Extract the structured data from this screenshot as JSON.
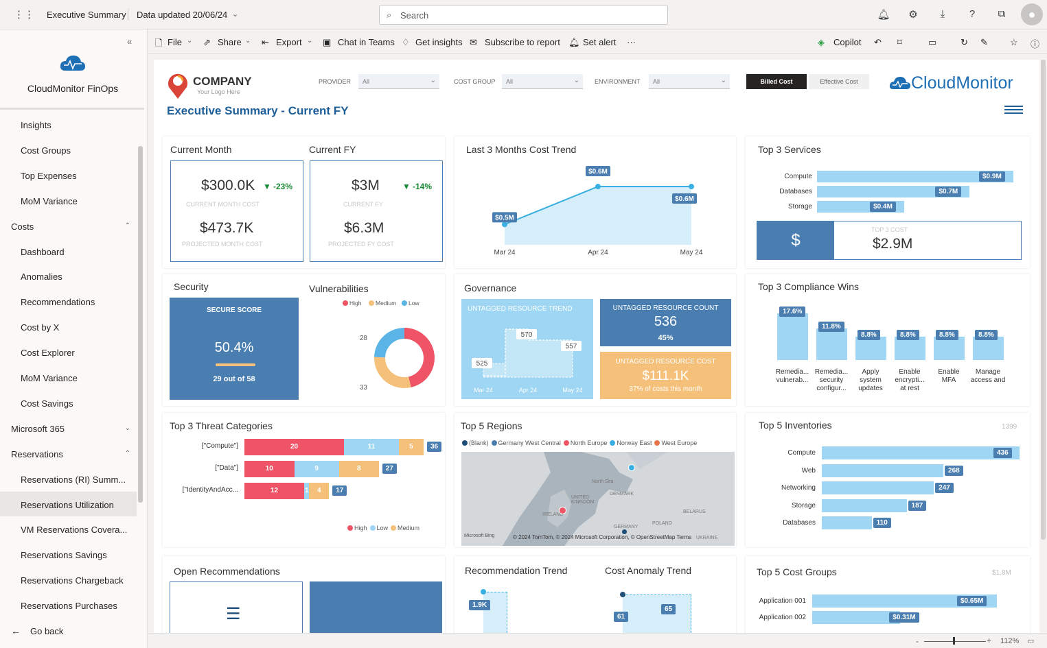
{
  "topbar": {
    "report_title": "Executive Summary",
    "data_updated": "Data updated 20/06/24",
    "search_placeholder": "Search"
  },
  "sidebar": {
    "app_name": "CloudMonitor FinOps",
    "items": [
      {
        "label": "Insights",
        "type": "sub"
      },
      {
        "label": "Cost Groups",
        "type": "sub"
      },
      {
        "label": "Top Expenses",
        "type": "sub"
      },
      {
        "label": "MoM Variance",
        "type": "sub"
      },
      {
        "label": "Costs",
        "type": "section"
      },
      {
        "label": "Dashboard",
        "type": "sub"
      },
      {
        "label": "Anomalies",
        "type": "sub"
      },
      {
        "label": "Recommendations",
        "type": "sub"
      },
      {
        "label": "Cost by X",
        "type": "sub"
      },
      {
        "label": "Cost Explorer",
        "type": "sub"
      },
      {
        "label": "MoM Variance",
        "type": "sub"
      },
      {
        "label": "Cost Savings",
        "type": "sub"
      },
      {
        "label": "Microsoft 365",
        "type": "section"
      },
      {
        "label": "Reservations",
        "type": "section"
      },
      {
        "label": "Reservations (RI) Summ...",
        "type": "sub"
      },
      {
        "label": "Reservations Utilization",
        "type": "sub",
        "selected": true
      },
      {
        "label": "VM Reservations Covera...",
        "type": "sub"
      },
      {
        "label": "Reservations Savings",
        "type": "sub"
      },
      {
        "label": "Reservations Chargeback",
        "type": "sub"
      },
      {
        "label": "Reservations Purchases",
        "type": "sub"
      }
    ],
    "go_back": "Go back"
  },
  "toolbar": {
    "file": "File",
    "share": "Share",
    "export": "Export",
    "chat": "Chat in Teams",
    "insights": "Get insights",
    "subscribe": "Subscribe to report",
    "alert": "Set alert",
    "more": "···",
    "copilot": "Copilot"
  },
  "report": {
    "company": "COMPANY",
    "logo_sub": "Your Logo Here",
    "title": "Executive Summary - Current FY",
    "brand": "CloudMonitor",
    "filters": {
      "provider_label": "PROVIDER",
      "provider_value": "All",
      "costgroup_label": "COST GROUP",
      "costgroup_value": "All",
      "env_label": "ENVIRONMENT",
      "env_value": "All"
    },
    "toggle": {
      "billed": "Billed Cost",
      "effective": "Effective Cost"
    },
    "current_month": {
      "title": "Current Month",
      "value": "$300.0K",
      "delta": "-23%",
      "label": "CURRENT MONTH COST",
      "projected": "$473.7K",
      "projected_label": "PROJECTED MONTH COST"
    },
    "current_fy": {
      "title": "Current FY",
      "value": "$3M",
      "delta": "-14%",
      "label": "CURRENT FY",
      "projected": "$6.3M",
      "projected_label": "PROJECTED FY COST"
    },
    "trend": {
      "title": "Last 3 Months Cost Trend"
    },
    "top_services": {
      "title": "Top 3 Services",
      "total_label": "TOP 3 COST",
      "total": "$2.9M",
      "currency": "$"
    },
    "security": {
      "title": "Security",
      "score_label": "SECURE SCORE",
      "score": "50.4%",
      "progress": 0.504,
      "detail": "29 out of 58"
    },
    "vulns": {
      "title": "Vulnerabilities"
    },
    "governance": {
      "title": "Governance",
      "trend_label": "UNTAGGED RESOURCE TREND",
      "count_label": "UNTAGGED RESOURCE COUNT",
      "count": "536",
      "count_pct": "45%",
      "cost_label": "UNTAGGED RESOURCE COST",
      "cost": "$111.1K",
      "cost_sub": "37% of costs this month"
    },
    "compliance": {
      "title": "Top 3 Compliance Wins"
    },
    "threats": {
      "title": "Top 3 Threat Categories"
    },
    "regions": {
      "title": "Top 5 Regions",
      "legend": [
        {
          "name": "(Blank)",
          "color": "#1f4e79"
        },
        {
          "name": "Germany West Central",
          "color": "#4a7eb0"
        },
        {
          "name": "North Europe",
          "color": "#ef5466"
        },
        {
          "name": "Norway East",
          "color": "#3ab0e2"
        },
        {
          "name": "West Europe",
          "color": "#e8754a"
        }
      ],
      "map_labels": [
        "North Sea",
        "DENMARK",
        "UNITED KINGDOM",
        "IRELAND",
        "BELARUS",
        "POLAND",
        "GERMANY",
        "UKRAINE"
      ],
      "credit": "© 2024 TomTom, © 2024 Microsoft Corporation, © OpenStreetMap  Terms",
      "bing": "Microsoft Bing"
    },
    "inventories": {
      "title": "Top 5 Inventories",
      "max": "1399"
    },
    "open_recs": {
      "title": "Open Recommendations"
    },
    "rec_trend": {
      "title": "Recommendation Trend",
      "value": "1.9K"
    },
    "anomaly_trend": {
      "title": "Cost Anomaly Trend",
      "v1": "61",
      "v2": "65"
    },
    "cost_groups": {
      "title": "Top 5 Cost Groups",
      "max": "$1.8M"
    }
  },
  "chart_data": [
    {
      "type": "line",
      "title": "Last 3 Months Cost Trend",
      "categories": [
        "Mar 24",
        "Apr 24",
        "May 24"
      ],
      "values": [
        0.5,
        0.6,
        0.6
      ],
      "labels": [
        "$0.5M",
        "$0.6M",
        "$0.6M"
      ]
    },
    {
      "type": "bar",
      "title": "Top 3 Services",
      "categories": [
        "Compute",
        "Databases",
        "Storage"
      ],
      "values": [
        0.9,
        0.7,
        0.4
      ],
      "labels": [
        "$0.9M",
        "$0.7M",
        "$0.4M"
      ]
    },
    {
      "type": "pie",
      "title": "Vulnerabilities",
      "categories": [
        "High",
        "Medium",
        "Low"
      ],
      "values": [
        53,
        33,
        28
      ],
      "colors": [
        "#ef5466",
        "#f5c07a",
        "#5ab4e5"
      ]
    },
    {
      "type": "line",
      "title": "UNTAGGED RESOURCE TREND",
      "categories": [
        "Mar 24",
        "Apr 24",
        "May 24"
      ],
      "values": [
        525,
        570,
        557
      ]
    },
    {
      "type": "bar",
      "title": "Top 3 Compliance Wins",
      "categories": [
        "Remedia... vulnerab...",
        "Remedia... security configur...",
        "Apply system updates",
        "Enable encrypti... at rest",
        "Enable MFA",
        "Manage access and"
      ],
      "values": [
        17.6,
        11.8,
        8.8,
        8.8,
        8.8,
        8.8
      ],
      "labels": [
        "17.6%",
        "11.8%",
        "8.8%",
        "8.8%",
        "8.8%",
        "8.8%"
      ]
    },
    {
      "type": "bar",
      "title": "Top 3 Threat Categories",
      "categories": [
        "[\"Compute\"]",
        "[\"Data\"]",
        "[\"IdentityAndAcc..."
      ],
      "series": [
        {
          "name": "High",
          "values": [
            20,
            10,
            12
          ]
        },
        {
          "name": "Low",
          "values": [
            11,
            9,
            1
          ]
        },
        {
          "name": "Medium",
          "values": [
            5,
            8,
            4
          ]
        }
      ],
      "totals": [
        36,
        27,
        17
      ]
    },
    {
      "type": "bar",
      "title": "Top 5 Inventories",
      "categories": [
        "Compute",
        "Web",
        "Networking",
        "Storage",
        "Databases"
      ],
      "values": [
        436,
        268,
        247,
        187,
        110
      ],
      "max": 1399
    },
    {
      "type": "bar",
      "title": "Top 5 Cost Groups",
      "categories": [
        "Application 001",
        "Application 002"
      ],
      "values": [
        0.65,
        0.31
      ],
      "labels": [
        "$0.65M",
        "$0.31M"
      ]
    }
  ],
  "status": {
    "zoom": "112%"
  }
}
